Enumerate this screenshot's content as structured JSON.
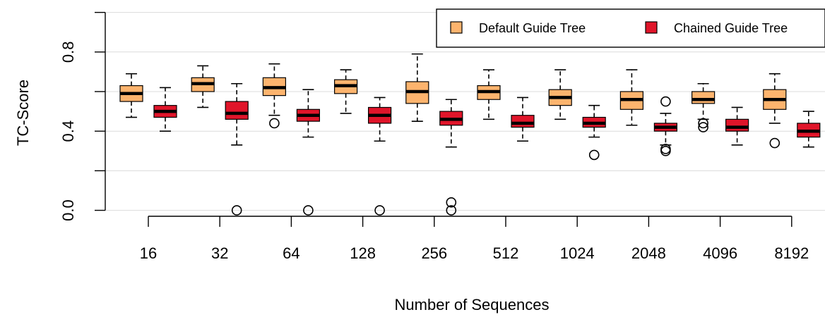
{
  "chart_data": {
    "type": "boxplot",
    "title": "",
    "xlabel": "Number of Sequences",
    "ylabel": "TC-Score",
    "ylim": [
      -0.03,
      1.02
    ],
    "yticks": [
      0.0,
      0.4,
      0.8
    ],
    "ytick_labels": [
      "0.0",
      "0.4",
      "0.8"
    ],
    "grid": "horizontal",
    "legend_position": "top-right",
    "categories": [
      "16",
      "32",
      "64",
      "128",
      "256",
      "512",
      "1024",
      "2048",
      "4096",
      "8192"
    ],
    "series": [
      {
        "name": "Default Guide Tree",
        "color": "#fdb46e",
        "boxes": [
          {
            "whisker_low": 0.47,
            "q1": 0.55,
            "median": 0.59,
            "q3": 0.63,
            "whisker_high": 0.69,
            "outliers": []
          },
          {
            "whisker_low": 0.52,
            "q1": 0.6,
            "median": 0.64,
            "q3": 0.67,
            "whisker_high": 0.73,
            "outliers": []
          },
          {
            "whisker_low": 0.48,
            "q1": 0.58,
            "median": 0.62,
            "q3": 0.67,
            "whisker_high": 0.74,
            "outliers": [
              0.44
            ]
          },
          {
            "whisker_low": 0.49,
            "q1": 0.59,
            "median": 0.63,
            "q3": 0.66,
            "whisker_high": 0.71,
            "outliers": []
          },
          {
            "whisker_low": 0.45,
            "q1": 0.54,
            "median": 0.6,
            "q3": 0.65,
            "whisker_high": 0.79,
            "outliers": []
          },
          {
            "whisker_low": 0.46,
            "q1": 0.56,
            "median": 0.6,
            "q3": 0.63,
            "whisker_high": 0.71,
            "outliers": []
          },
          {
            "whisker_low": 0.46,
            "q1": 0.53,
            "median": 0.57,
            "q3": 0.61,
            "whisker_high": 0.71,
            "outliers": []
          },
          {
            "whisker_low": 0.43,
            "q1": 0.51,
            "median": 0.56,
            "q3": 0.6,
            "whisker_high": 0.71,
            "outliers": []
          },
          {
            "whisker_low": 0.46,
            "q1": 0.54,
            "median": 0.56,
            "q3": 0.6,
            "whisker_high": 0.64,
            "outliers": [
              0.44,
              0.42
            ]
          },
          {
            "whisker_low": 0.44,
            "q1": 0.51,
            "median": 0.56,
            "q3": 0.61,
            "whisker_high": 0.69,
            "outliers": [
              0.34
            ]
          }
        ]
      },
      {
        "name": "Chained Guide Tree",
        "color": "#e0152a",
        "boxes": [
          {
            "whisker_low": 0.4,
            "q1": 0.47,
            "median": 0.5,
            "q3": 0.53,
            "whisker_high": 0.62,
            "outliers": []
          },
          {
            "whisker_low": 0.33,
            "q1": 0.46,
            "median": 0.49,
            "q3": 0.55,
            "whisker_high": 0.64,
            "outliers": [
              0.0
            ]
          },
          {
            "whisker_low": 0.37,
            "q1": 0.45,
            "median": 0.48,
            "q3": 0.51,
            "whisker_high": 0.61,
            "outliers": [
              0.0
            ]
          },
          {
            "whisker_low": 0.35,
            "q1": 0.44,
            "median": 0.48,
            "q3": 0.52,
            "whisker_high": 0.57,
            "outliers": [
              0.0
            ]
          },
          {
            "whisker_low": 0.32,
            "q1": 0.43,
            "median": 0.46,
            "q3": 0.5,
            "whisker_high": 0.56,
            "outliers": [
              0.04,
              0.0
            ]
          },
          {
            "whisker_low": 0.35,
            "q1": 0.42,
            "median": 0.44,
            "q3": 0.48,
            "whisker_high": 0.57,
            "outliers": []
          },
          {
            "whisker_low": 0.37,
            "q1": 0.42,
            "median": 0.44,
            "q3": 0.47,
            "whisker_high": 0.53,
            "outliers": [
              0.28
            ]
          },
          {
            "whisker_low": 0.33,
            "q1": 0.4,
            "median": 0.42,
            "q3": 0.44,
            "whisker_high": 0.49,
            "outliers": [
              0.55,
              0.31,
              0.3
            ]
          },
          {
            "whisker_low": 0.33,
            "q1": 0.4,
            "median": 0.42,
            "q3": 0.46,
            "whisker_high": 0.52,
            "outliers": []
          },
          {
            "whisker_low": 0.32,
            "q1": 0.37,
            "median": 0.4,
            "q3": 0.44,
            "whisker_high": 0.5,
            "outliers": []
          }
        ]
      }
    ]
  }
}
